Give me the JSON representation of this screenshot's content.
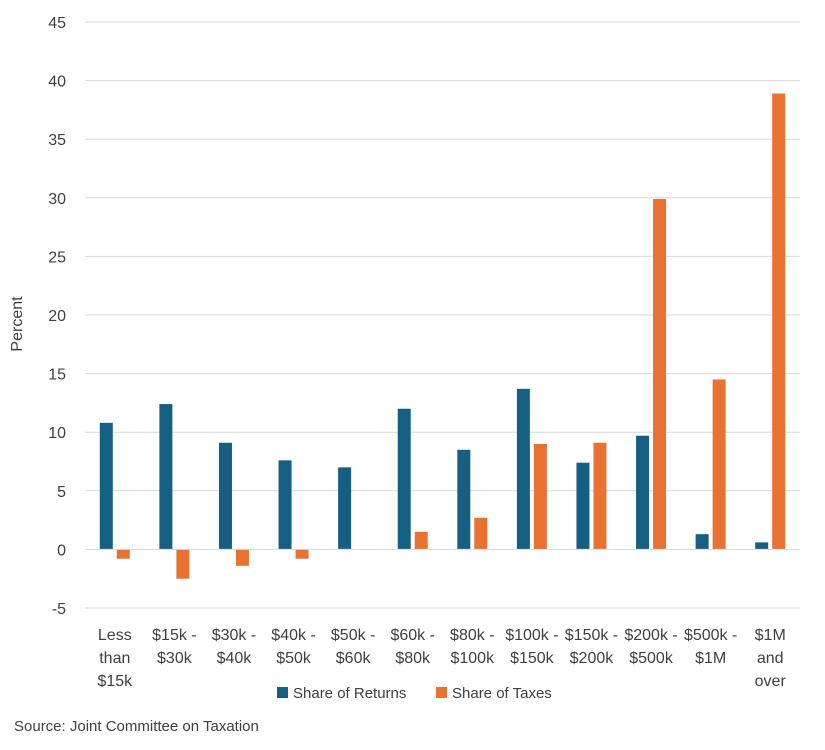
{
  "chart_data": {
    "type": "bar",
    "categories": [
      [
        "Less",
        "than",
        "$15k"
      ],
      [
        "$15k -",
        "$30k"
      ],
      [
        "$30k -",
        "$40k"
      ],
      [
        "$40k -",
        "$50k"
      ],
      [
        "$50k -",
        "$60k"
      ],
      [
        "$60k -",
        "$80k"
      ],
      [
        "$80k -",
        "$100k"
      ],
      [
        "$100k -",
        "$150k"
      ],
      [
        "$150k -",
        "$200k"
      ],
      [
        "$200k -",
        "$500k"
      ],
      [
        "$500k -",
        "$1M"
      ],
      [
        "$1M",
        "and",
        "over"
      ]
    ],
    "series": [
      {
        "name": "Share of Returns",
        "color": "#156082",
        "values": [
          10.8,
          12.4,
          9.1,
          7.6,
          7.0,
          12.0,
          8.5,
          13.7,
          7.4,
          9.7,
          1.3,
          0.6
        ]
      },
      {
        "name": "Share of Taxes",
        "color": "#E97132",
        "values": [
          -0.8,
          -2.5,
          -1.4,
          -0.8,
          0.0,
          1.5,
          2.7,
          9.0,
          9.1,
          29.9,
          14.5,
          38.9
        ]
      }
    ],
    "ylabel": "Percent",
    "ylim": [
      -5,
      45
    ],
    "yticks": [
      -5,
      0,
      5,
      10,
      15,
      20,
      25,
      30,
      35,
      40,
      45
    ],
    "grid": true,
    "legend": "bottom"
  },
  "source": "Source: Joint Committee on Taxation"
}
